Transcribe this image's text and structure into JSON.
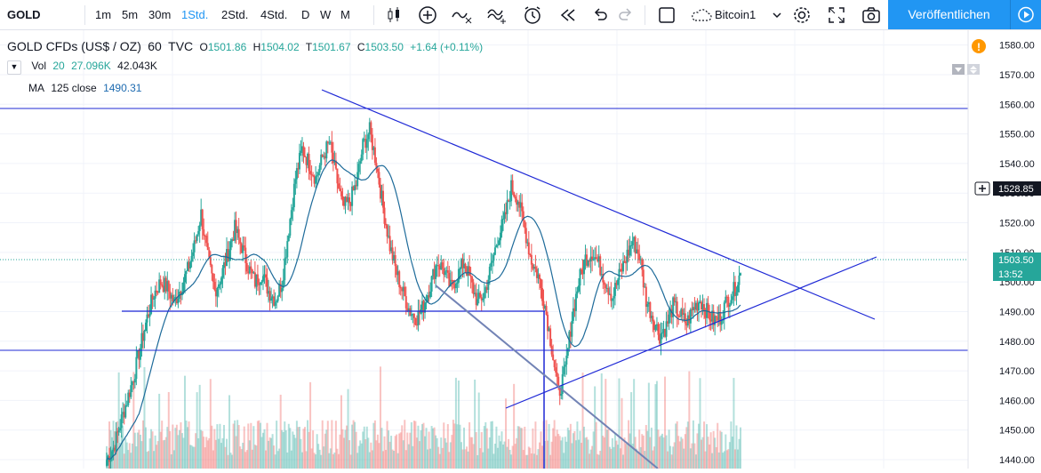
{
  "toolbar": {
    "symbol": "GOLD",
    "intervals": [
      "1m",
      "5m",
      "30m",
      "1Std.",
      "2Std.",
      "4Std.",
      "D",
      "W",
      "M"
    ],
    "active_interval": "1Std.",
    "watchlist_label": "Bitcoin1",
    "publish_label": "Veröffentlichen"
  },
  "legend": {
    "title": "GOLD CFDs (US$ / OZ)",
    "interval": "60",
    "source": "TVC",
    "open_label": "O",
    "open": "1501.86",
    "high_label": "H",
    "high": "1504.02",
    "low_label": "T",
    "low": "1501.67",
    "close_label": "C",
    "close": "1503.50",
    "change": "+1.64 (+0.11%)",
    "vol_label": "Vol",
    "vol_len": "20",
    "vol_ma": "27.096K",
    "vol_last": "42.043K",
    "ma_label": "MA",
    "ma_len": "125 close",
    "ma_value": "1490.31"
  },
  "price_axis": {
    "price_tag": "1503.50",
    "countdown": "13:52",
    "crosshair_price": "1528.85"
  },
  "colors": {
    "up": "#26a69a",
    "down": "#ef5350",
    "ma": "#1e6b9a",
    "lines": "#1f29d6",
    "channel": "#7283b5",
    "accent": "#2196f3"
  },
  "chart_data": {
    "type": "candlestick",
    "ylim": [
      1437,
      1585
    ],
    "y_ticks": [
      1440,
      1450,
      1460,
      1470,
      1480,
      1490,
      1500,
      1510,
      1520,
      1530,
      1540,
      1550,
      1560,
      1570,
      1580
    ],
    "closes": [
      1440,
      1444,
      1452,
      1460,
      1468,
      1478,
      1488,
      1496,
      1500,
      1498,
      1493,
      1498,
      1504,
      1512,
      1523,
      1508,
      1497,
      1502,
      1510,
      1518,
      1512,
      1505,
      1500,
      1503,
      1497,
      1494,
      1500,
      1518,
      1535,
      1545,
      1540,
      1535,
      1542,
      1547,
      1536,
      1525,
      1527,
      1533,
      1546,
      1551,
      1540,
      1525,
      1512,
      1503,
      1496,
      1490,
      1488,
      1492,
      1499,
      1507,
      1504,
      1498,
      1502,
      1507,
      1500,
      1493,
      1496,
      1505,
      1515,
      1521,
      1532,
      1528,
      1518,
      1507,
      1502,
      1492,
      1478,
      1462,
      1470,
      1488,
      1500,
      1508,
      1510,
      1506,
      1500,
      1495,
      1502,
      1508,
      1514,
      1509,
      1494,
      1488,
      1482,
      1485,
      1492,
      1489,
      1486,
      1491,
      1494,
      1490,
      1487,
      1488,
      1494,
      1497,
      1503
    ]
  }
}
